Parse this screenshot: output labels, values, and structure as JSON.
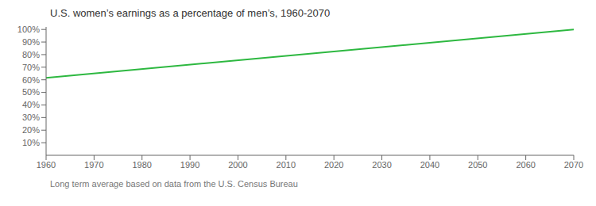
{
  "chart_data": {
    "type": "line",
    "title": "U.S. women’s earnings as a percentage of men’s, 1960-2070",
    "subtitle": "Long term average based on data from the U.S. Census Bureau",
    "x": [
      1960,
      2070
    ],
    "series": [
      {
        "color": "#2db840",
        "values": [
          61.5,
          100.0
        ]
      }
    ],
    "xlim": [
      1960,
      2070
    ],
    "xticks": [
      1960,
      1970,
      1980,
      1990,
      2000,
      2010,
      2020,
      2030,
      2040,
      2050,
      2060,
      2070
    ],
    "ylim": [
      0,
      102
    ],
    "yticks": [
      {
        "value": 10,
        "label": "10%"
      },
      {
        "value": 20,
        "label": "20%"
      },
      {
        "value": 30,
        "label": "30%"
      },
      {
        "value": 40,
        "label": "40%"
      },
      {
        "value": 50,
        "label": "50%"
      },
      {
        "value": 60,
        "label": "60%"
      },
      {
        "value": 70,
        "label": "70%"
      },
      {
        "value": 80,
        "label": "80%"
      },
      {
        "value": 90,
        "label": "90%"
      },
      {
        "value": 100,
        "label": "100%"
      }
    ],
    "grid": false
  }
}
